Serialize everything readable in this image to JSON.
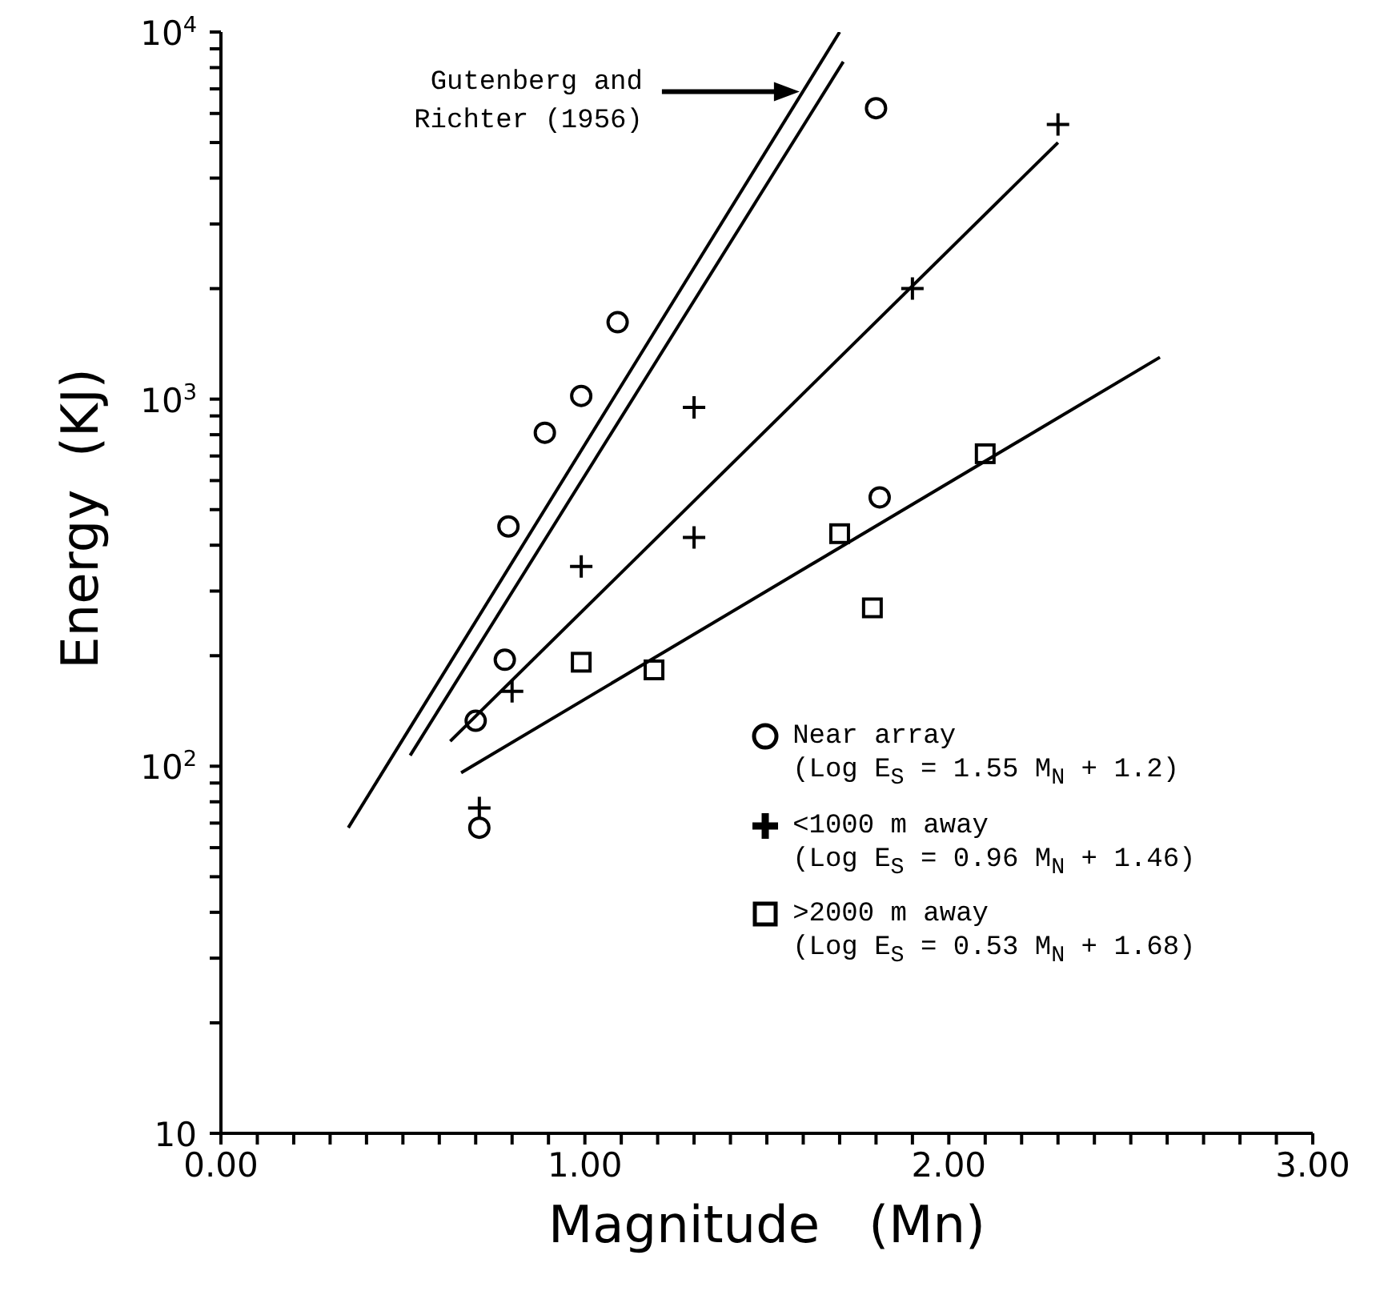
{
  "chart_data": {
    "type": "scatter",
    "xlabel": "Magnitude   (Mn)",
    "ylabel": "Energy  (KJ)",
    "log": "y",
    "grid": false,
    "legend": "right",
    "xlim": [
      0,
      3
    ],
    "ylim": [
      10,
      10000
    ],
    "xticks": [
      {
        "value": 0,
        "label": "0.00"
      },
      {
        "value": 0.1,
        "label": null
      },
      {
        "value": 0.2,
        "label": null
      },
      {
        "value": 0.3,
        "label": null
      },
      {
        "value": 0.4,
        "label": null
      },
      {
        "value": 0.5,
        "label": null
      },
      {
        "value": 0.6,
        "label": null
      },
      {
        "value": 0.7,
        "label": null
      },
      {
        "value": 0.8,
        "label": null
      },
      {
        "value": 0.9,
        "label": null
      },
      {
        "value": 1,
        "label": "1.00"
      },
      {
        "value": 1.1,
        "label": null
      },
      {
        "value": 1.2,
        "label": null
      },
      {
        "value": 1.3,
        "label": null
      },
      {
        "value": 1.4,
        "label": null
      },
      {
        "value": 1.5,
        "label": null
      },
      {
        "value": 1.6,
        "label": null
      },
      {
        "value": 1.7,
        "label": null
      },
      {
        "value": 1.8,
        "label": null
      },
      {
        "value": 1.9,
        "label": null
      },
      {
        "value": 2,
        "label": "2.00"
      },
      {
        "value": 2.1,
        "label": null
      },
      {
        "value": 2.2,
        "label": null
      },
      {
        "value": 2.3,
        "label": null
      },
      {
        "value": 2.4,
        "label": null
      },
      {
        "value": 2.5,
        "label": null
      },
      {
        "value": 2.6,
        "label": null
      },
      {
        "value": 2.7,
        "label": null
      },
      {
        "value": 2.8,
        "label": null
      },
      {
        "value": 2.9,
        "label": null
      },
      {
        "value": 3,
        "label": "3.00"
      }
    ],
    "yticks": [
      10,
      {
        "value": 20,
        "label": null
      },
      {
        "value": 30,
        "label": null
      },
      {
        "value": 40,
        "label": null
      },
      {
        "value": 50,
        "label": null
      },
      {
        "value": 60,
        "label": null
      },
      {
        "value": 70,
        "label": null
      },
      {
        "value": 80,
        "label": null
      },
      {
        "value": 90,
        "label": null
      },
      {
        "value": 100,
        "label": "10$^{2}$"
      },
      {
        "value": 200,
        "label": null
      },
      {
        "value": 300,
        "label": null
      },
      {
        "value": 400,
        "label": null
      },
      {
        "value": 500,
        "label": null
      },
      {
        "value": 600,
        "label": null
      },
      {
        "value": 700,
        "label": null
      },
      {
        "value": 800,
        "label": null
      },
      {
        "value": 900,
        "label": null
      },
      {
        "value": 1000,
        "label": "10$^{3}$"
      },
      {
        "value": 2000,
        "label": null
      },
      {
        "value": 3000,
        "label": null
      },
      {
        "value": 4000,
        "label": null
      },
      {
        "value": 5000,
        "label": null
      },
      {
        "value": 6000,
        "label": null
      },
      {
        "value": 7000,
        "label": null
      },
      {
        "value": 8000,
        "label": null
      },
      {
        "value": 9000,
        "label": null
      },
      {
        "value": 10000,
        "label": "10$^{4}$"
      }
    ],
    "annotations": [
      "Gutenberg and\nRichter (1956)"
    ],
    "series": [
      {
        "name": "Near array\n(Log E$_{S}$ = 1.55 M$_{N}$ + 1.2)",
        "marker": "circle",
        "color": "#000000",
        "x": [
          1.8,
          1.09,
          0.99,
          0.89,
          0.79,
          1.81,
          0.78,
          0.7,
          0.71
        ],
        "values": [
          6200,
          1620,
          1020,
          810,
          450,
          540,
          195,
          133,
          68
        ]
      },
      {
        "name": "<1000 m away\n(Log E$_{S}$ = 0.96 M$_{N}$ + 1.46)",
        "marker": "cross",
        "color": "#000000",
        "x": [
          2.3,
          1.9,
          1.3,
          1.3,
          0.99,
          0.8,
          0.71
        ],
        "values": [
          5600,
          2000,
          950,
          420,
          350,
          160,
          77
        ]
      },
      {
        "name": ">2000 m away\n(Log E$_{S}$ = 0.53 M$_{N}$ + 1.68)",
        "marker": "square",
        "color": "#000000",
        "x": [
          2.1,
          1.7,
          1.79,
          0.99,
          1.19
        ],
        "values": [
          710,
          430,
          270,
          192,
          183
        ]
      },
      {
        "type": "line",
        "marker": "none",
        "line_style": "solid",
        "color": "#000000",
        "x": [
          0.35,
          1.7
        ],
        "values": [
          68,
          10000
        ]
      },
      {
        "type": "line",
        "marker": "none",
        "line_style": "solid",
        "color": "#000000",
        "x": [
          0.52,
          1.71
        ],
        "values": [
          107,
          8300
        ]
      },
      {
        "type": "line",
        "marker": "none",
        "line_style": "solid",
        "color": "#000000",
        "x": [
          0.63,
          2.3
        ],
        "values": [
          117,
          5000
        ]
      },
      {
        "type": "line",
        "marker": "none",
        "line_style": "solid",
        "color": "#000000",
        "x": [
          0.66,
          2.58
        ],
        "values": [
          96,
          1300
        ]
      }
    ]
  }
}
